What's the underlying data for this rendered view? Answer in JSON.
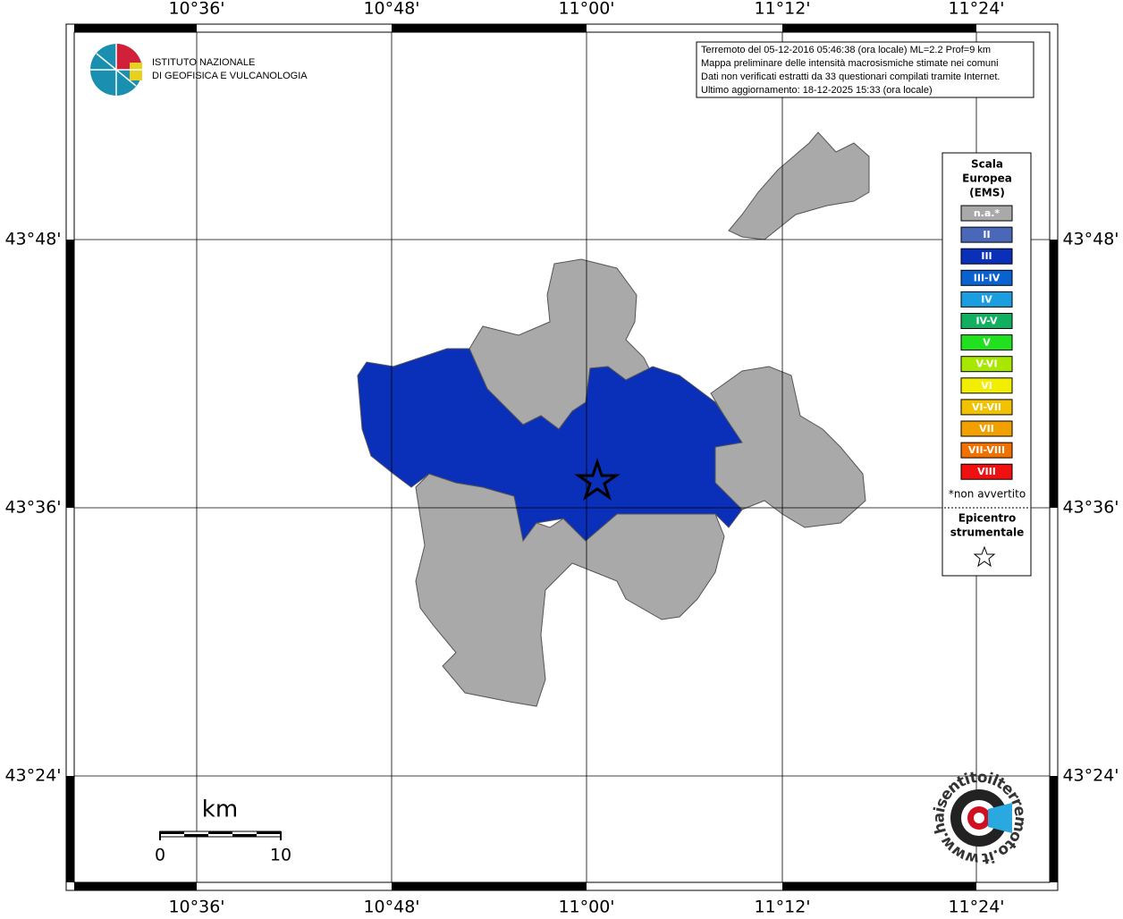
{
  "header": {
    "lines": [
      "Terremoto del 05-12-2016 05:46:38 (ora locale) ML=2.2 Prof=9 km",
      "Mappa preliminare delle intensità macrosismiche stimate nei comuni",
      "Dati non verificati estratti da 33 questionari compilati tramite Internet.",
      "Ultimo aggiornamento: 18-12-2025 15:33 (ora locale)"
    ]
  },
  "logo": {
    "line1": "ISTITUTO NAZIONALE",
    "line2": "DI GEOFISICA E VULCANOLOGIA"
  },
  "axes": {
    "longitude_labels": [
      "10°36'",
      "10°48'",
      "11°00'",
      "11°12'",
      "11°24'"
    ],
    "latitude_labels": [
      "43°48'",
      "43°36'",
      "43°24'"
    ]
  },
  "legend": {
    "title_lines": [
      "Scala",
      "Europea",
      "(EMS)"
    ],
    "classes": [
      {
        "label": "n.a.*",
        "color": "#a9a9a9"
      },
      {
        "label": "II",
        "color": "#4a68b8"
      },
      {
        "label": "III",
        "color": "#0a2fb8"
      },
      {
        "label": "III-IV",
        "color": "#0a62d0"
      },
      {
        "label": "IV",
        "color": "#1a9ee0"
      },
      {
        "label": "IV-V",
        "color": "#10b060"
      },
      {
        "label": "V",
        "color": "#20e020"
      },
      {
        "label": "V-VI",
        "color": "#a8e800"
      },
      {
        "label": "VI",
        "color": "#f2ee00"
      },
      {
        "label": "VI-VII",
        "color": "#f2c200"
      },
      {
        "label": "VII",
        "color": "#f2a000"
      },
      {
        "label": "VII-VIII",
        "color": "#f27000"
      },
      {
        "label": "VIII",
        "color": "#f01010"
      }
    ],
    "note": "*non avvertito",
    "epicenter_lines": [
      "Epicentro",
      "strumentale"
    ]
  },
  "scale_bar": {
    "unit": "km",
    "labels": [
      "0",
      "10"
    ]
  },
  "watermark": "www.haisentitoilterremoto.it"
}
